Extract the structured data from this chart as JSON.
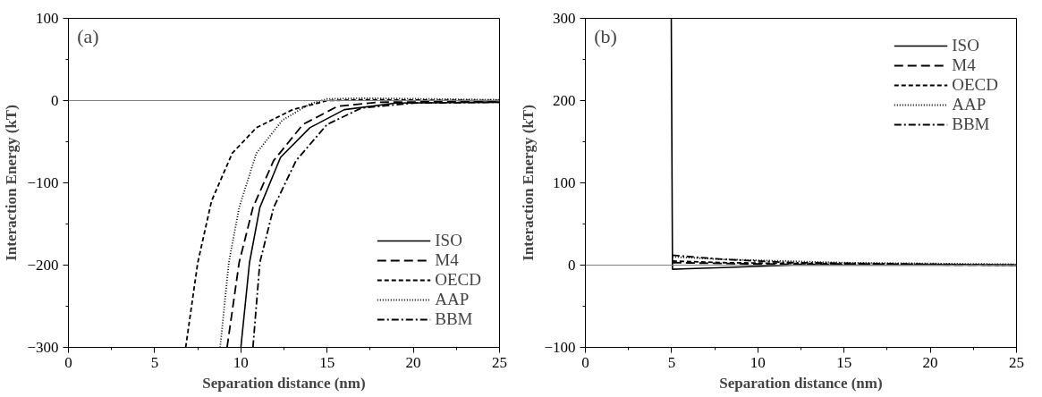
{
  "chart_data": [
    {
      "type": "line",
      "xlabel": "Separation distance (nm)",
      "ylabel": "Interaction Energy (kT)",
      "annotations": [
        "(a)"
      ],
      "xlim": [
        0,
        25
      ],
      "ylim": [
        -300,
        100
      ],
      "xticks": [
        0,
        5,
        10,
        15,
        20,
        25
      ],
      "yticks": [
        -300,
        -200,
        -100,
        0,
        100
      ],
      "ref_lines": [
        {
          "axis": "y",
          "value": 0,
          "color": "#808080"
        }
      ],
      "legend": "bottom right",
      "grid": false,
      "tick_labels": "xy",
      "series": [
        {
          "name": "ISO",
          "color": "#000000",
          "line_style": "solid",
          "x": [
            10.0,
            10.5,
            11.1,
            12.3,
            14,
            16,
            19,
            25
          ],
          "values": [
            -300,
            -197,
            -130,
            -69,
            -33,
            -11,
            -3,
            -2
          ]
        },
        {
          "name": "M4",
          "color": "#000000",
          "line_style": "dashed",
          "x": [
            9.2,
            9.9,
            10.7,
            11.9,
            13.6,
            15.6,
            18,
            25
          ],
          "values": [
            -300,
            -197,
            -130,
            -73,
            -29,
            -7,
            -2,
            -1
          ]
        },
        {
          "name": "OECD",
          "color": "#000000",
          "line_style": "shortdash",
          "x": [
            6.8,
            7.5,
            8.3,
            9.5,
            10.9,
            13,
            15,
            17,
            25
          ],
          "values": [
            -300,
            -197,
            -122,
            -64,
            -33,
            -11,
            0,
            1,
            0
          ]
        },
        {
          "name": "AAP",
          "color": "#000000",
          "line_style": "dotted",
          "x": [
            8.8,
            9.3,
            9.9,
            10.9,
            12.4,
            14,
            15,
            17,
            25
          ],
          "values": [
            -300,
            -197,
            -130,
            -64,
            -24,
            -4,
            2,
            3,
            1
          ]
        },
        {
          "name": "BBM",
          "color": "#000000",
          "line_style": "dashdot",
          "x": [
            10.7,
            11.1,
            11.9,
            13.2,
            15,
            17,
            20,
            25
          ],
          "values": [
            -300,
            -197,
            -130,
            -73,
            -29,
            -9,
            -3,
            -2
          ]
        }
      ]
    },
    {
      "type": "line",
      "xlabel": "Separation distance (nm)",
      "ylabel": "Interaction Energy (kT)",
      "annotations": [
        "(b)"
      ],
      "xlim": [
        0,
        25
      ],
      "ylim": [
        -100,
        300
      ],
      "xticks": [
        0,
        5,
        10,
        15,
        20,
        25
      ],
      "yticks": [
        -100,
        0,
        100,
        200,
        300
      ],
      "ref_lines": [
        {
          "axis": "y",
          "value": 0,
          "color": "#808080"
        }
      ],
      "legend": "top right",
      "grid": false,
      "tick_labels": "xy",
      "series": [
        {
          "name": "ISO",
          "color": "#000000",
          "line_style": "solid",
          "x": [
            4.98,
            5.05,
            8,
            12,
            25
          ],
          "values": [
            300,
            -5,
            -3,
            0,
            0
          ]
        },
        {
          "name": "M4",
          "color": "#000000",
          "line_style": "dashed",
          "x": [
            5.05,
            8,
            12,
            25
          ],
          "values": [
            3,
            2,
            1,
            0
          ]
        },
        {
          "name": "OECD",
          "color": "#000000",
          "line_style": "shortdash",
          "x": [
            5.05,
            8,
            12,
            25
          ],
          "values": [
            5,
            3,
            2,
            0
          ]
        },
        {
          "name": "AAP",
          "color": "#000000",
          "line_style": "dotted",
          "x": [
            5.05,
            8,
            15,
            25
          ],
          "values": [
            10,
            7,
            3,
            1
          ]
        },
        {
          "name": "BBM",
          "color": "#000000",
          "line_style": "dashdot",
          "x": [
            5.05,
            8,
            12,
            25
          ],
          "values": [
            12,
            7,
            3,
            0
          ]
        }
      ]
    }
  ]
}
